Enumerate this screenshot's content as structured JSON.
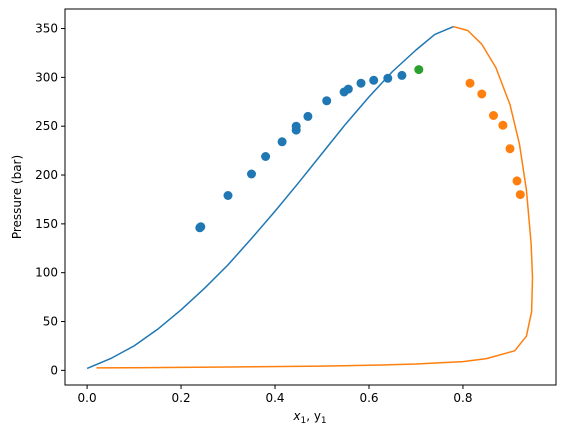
{
  "chart_data": {
    "type": "scatter",
    "title": "",
    "xlabel": "x",
    "xlabel_sub1": "1",
    "xlabel_sep": ", y",
    "xlabel_sub2": "1",
    "ylabel": "Pressure (bar)",
    "xlim": [
      -0.047,
      0.998
    ],
    "ylim": [
      -15,
      370
    ],
    "xticks": [
      0.0,
      0.2,
      0.4,
      0.6,
      0.8
    ],
    "xtick_labels": [
      "0.0",
      "0.2",
      "0.4",
      "0.6",
      "0.8"
    ],
    "yticks": [
      0,
      50,
      100,
      150,
      200,
      250,
      300,
      350
    ],
    "ytick_labels": [
      "0",
      "50",
      "100",
      "150",
      "200",
      "250",
      "300",
      "350"
    ],
    "grid": false,
    "series": [
      {
        "kind": "line",
        "color": "#1f77b4",
        "points": [
          [
            0.0,
            2
          ],
          [
            0.05,
            12
          ],
          [
            0.1,
            25
          ],
          [
            0.15,
            42
          ],
          [
            0.2,
            62
          ],
          [
            0.25,
            84
          ],
          [
            0.3,
            108
          ],
          [
            0.35,
            135
          ],
          [
            0.4,
            163
          ],
          [
            0.45,
            192
          ],
          [
            0.5,
            222
          ],
          [
            0.55,
            252
          ],
          [
            0.6,
            280
          ],
          [
            0.65,
            306
          ],
          [
            0.7,
            328
          ],
          [
            0.74,
            344
          ],
          [
            0.78,
            352
          ]
        ]
      },
      {
        "kind": "line",
        "color": "#ff7f0e",
        "points": [
          [
            0.78,
            352
          ],
          [
            0.81,
            348
          ],
          [
            0.84,
            334
          ],
          [
            0.87,
            310
          ],
          [
            0.9,
            272
          ],
          [
            0.92,
            232
          ],
          [
            0.935,
            185
          ],
          [
            0.945,
            130
          ],
          [
            0.948,
            95
          ],
          [
            0.946,
            60
          ],
          [
            0.935,
            35
          ],
          [
            0.91,
            20
          ],
          [
            0.85,
            12
          ],
          [
            0.8,
            9
          ],
          [
            0.7,
            6.5
          ],
          [
            0.6,
            5.2
          ],
          [
            0.5,
            4.4
          ],
          [
            0.3,
            3.4
          ],
          [
            0.1,
            2.7
          ],
          [
            0.02,
            2.5
          ]
        ]
      },
      {
        "kind": "scatter",
        "color": "#1f77b4",
        "points": [
          [
            0.24,
            146
          ],
          [
            0.242,
            147
          ],
          [
            0.3,
            179
          ],
          [
            0.35,
            201
          ],
          [
            0.38,
            219
          ],
          [
            0.415,
            234
          ],
          [
            0.445,
            246
          ],
          [
            0.445,
            250
          ],
          [
            0.47,
            260
          ],
          [
            0.51,
            276
          ],
          [
            0.547,
            285
          ],
          [
            0.556,
            288
          ],
          [
            0.583,
            294
          ],
          [
            0.61,
            297
          ],
          [
            0.64,
            299
          ],
          [
            0.67,
            302
          ]
        ]
      },
      {
        "kind": "scatter",
        "color": "#2ca02c",
        "points": [
          [
            0.706,
            308
          ]
        ]
      },
      {
        "kind": "scatter",
        "color": "#ff7f0e",
        "points": [
          [
            0.815,
            294
          ],
          [
            0.84,
            283
          ],
          [
            0.865,
            261
          ],
          [
            0.885,
            251
          ],
          [
            0.9,
            227
          ],
          [
            0.915,
            194
          ],
          [
            0.922,
            180
          ]
        ]
      }
    ]
  }
}
